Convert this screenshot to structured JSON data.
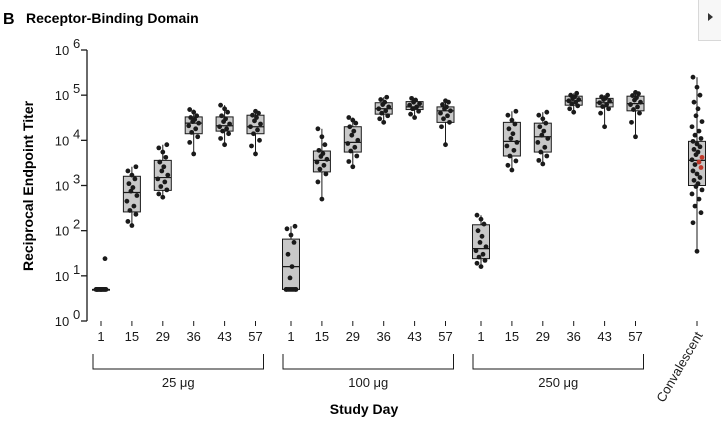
{
  "panel": {
    "letter": "B",
    "title": "Receptor-Binding Domain"
  },
  "colors": {
    "box_fill": "#c8c8c8",
    "point": "#1a1a1a",
    "convalescent_highlight": "#c0392b"
  },
  "chart_data": {
    "type": "box-scatter",
    "title": "Receptor-Binding Domain",
    "xlabel": "Study Day",
    "ylabel": "Reciprocal Endpoint Titer",
    "yscale": "log10",
    "ylim": [
      1,
      1000000
    ],
    "yticks": [
      {
        "value": 1,
        "base": "10",
        "exp": "0"
      },
      {
        "value": 10,
        "base": "10",
        "exp": "1"
      },
      {
        "value": 100,
        "base": "10",
        "exp": "2"
      },
      {
        "value": 1000,
        "base": "10",
        "exp": "3"
      },
      {
        "value": 10000,
        "base": "10",
        "exp": "4"
      },
      {
        "value": 100000,
        "base": "10",
        "exp": "5"
      },
      {
        "value": 1000000,
        "base": "10",
        "exp": "6"
      }
    ],
    "dose_groups": [
      {
        "label": "25 μg",
        "days": [
          {
            "day": "1",
            "q1": 5,
            "median": 5,
            "q3": 5,
            "whisker_low": 5,
            "whisker_high": 5,
            "points": [
              5,
              5,
              5,
              5,
              5,
              5,
              5,
              5,
              5,
              5,
              5,
              5,
              5,
              24
            ]
          },
          {
            "day": "15",
            "q1": 260,
            "median": 700,
            "q3": 1600,
            "whisker_low": 130,
            "whisker_high": 2600,
            "points": [
              130,
              160,
              230,
              280,
              350,
              450,
              600,
              750,
              900,
              1100,
              1400,
              1700,
              2100,
              2600
            ]
          },
          {
            "day": "29",
            "q1": 780,
            "median": 1500,
            "q3": 3600,
            "whisker_low": 550,
            "whisker_high": 8000,
            "points": [
              550,
              650,
              800,
              950,
              1200,
              1400,
              1700,
              2100,
              2600,
              3300,
              4200,
              5500,
              6800,
              8000
            ]
          },
          {
            "day": "36",
            "q1": 14000,
            "median": 24000,
            "q3": 33000,
            "whisker_low": 5000,
            "whisker_high": 48000,
            "points": [
              5000,
              9000,
              12000,
              15000,
              18000,
              21000,
              24000,
              26000,
              29000,
              32000,
              35000,
              42000,
              48000
            ]
          },
          {
            "day": "43",
            "q1": 16000,
            "median": 21000,
            "q3": 33000,
            "whisker_low": 8000,
            "whisker_high": 60000,
            "points": [
              8000,
              11000,
              14000,
              16000,
              18000,
              20000,
              23000,
              26000,
              30000,
              35000,
              42000,
              50000,
              60000
            ]
          },
          {
            "day": "57",
            "q1": 14000,
            "median": 20000,
            "q3": 36000,
            "whisker_low": 5000,
            "whisker_high": 44000,
            "points": [
              5000,
              7500,
              10000,
              14000,
              17000,
              20000,
              23000,
              27000,
              32000,
              36000,
              40000,
              44000
            ]
          }
        ]
      },
      {
        "label": "100 μg",
        "days": [
          {
            "day": "1",
            "q1": 5,
            "median": 16,
            "q3": 65,
            "whisker_low": 5,
            "whisker_high": 125,
            "points": [
              5,
              5,
              5,
              5,
              5,
              5,
              5,
              9,
              16,
              30,
              55,
              80,
              110,
              125
            ]
          },
          {
            "day": "15",
            "q1": 2000,
            "median": 3600,
            "q3": 5800,
            "whisker_low": 500,
            "whisker_high": 18000,
            "points": [
              500,
              1200,
              1800,
              2300,
              2800,
              3300,
              3800,
              4400,
              5100,
              6000,
              8000,
              12000,
              18000
            ]
          },
          {
            "day": "29",
            "q1": 5500,
            "median": 9000,
            "q3": 20000,
            "whisker_low": 2600,
            "whisker_high": 32000,
            "points": [
              2600,
              3400,
              4500,
              5800,
              7000,
              8500,
              10000,
              13000,
              16000,
              20000,
              24000,
              28000,
              32000
            ]
          },
          {
            "day": "36",
            "q1": 38000,
            "median": 50000,
            "q3": 68000,
            "whisker_low": 25000,
            "whisker_high": 90000,
            "points": [
              25000,
              30000,
              35000,
              40000,
              45000,
              50000,
              55000,
              62000,
              70000,
              80000,
              90000
            ]
          },
          {
            "day": "43",
            "q1": 48000,
            "median": 55000,
            "q3": 72000,
            "whisker_low": 32000,
            "whisker_high": 85000,
            "points": [
              32000,
              38000,
              44000,
              50000,
              55000,
              60000,
              65000,
              70000,
              78000,
              85000
            ]
          },
          {
            "day": "57",
            "q1": 25000,
            "median": 45000,
            "q3": 55000,
            "whisker_low": 8000,
            "whisker_high": 75000,
            "points": [
              8000,
              20000,
              25000,
              30000,
              35000,
              40000,
              45000,
              50000,
              55000,
              62000,
              70000,
              75000
            ]
          }
        ]
      },
      {
        "label": "250 μg",
        "days": [
          {
            "day": "1",
            "q1": 24,
            "median": 40,
            "q3": 135,
            "whisker_low": 16,
            "whisker_high": 220,
            "points": [
              16,
              19,
              22,
              26,
              30,
              36,
              44,
              55,
              75,
              100,
              140,
              180,
              220
            ]
          },
          {
            "day": "15",
            "q1": 4500,
            "median": 9500,
            "q3": 25000,
            "whisker_low": 2200,
            "whisker_high": 44000,
            "points": [
              2200,
              2800,
              3500,
              4500,
              6000,
              7500,
              9000,
              11000,
              14000,
              18000,
              23000,
              28000,
              36000,
              44000
            ]
          },
          {
            "day": "29",
            "q1": 5500,
            "median": 12000,
            "q3": 24000,
            "whisker_low": 3000,
            "whisker_high": 42000,
            "points": [
              3000,
              3600,
              4500,
              5500,
              7000,
              9000,
              11000,
              13000,
              16000,
              20000,
              24000,
              30000,
              36000,
              42000
            ]
          },
          {
            "day": "36",
            "q1": 60000,
            "median": 75000,
            "q3": 95000,
            "whisker_low": 42000,
            "whisker_high": 110000,
            "points": [
              42000,
              50000,
              58000,
              64000,
              70000,
              75000,
              80000,
              86000,
              92000,
              100000,
              110000
            ]
          },
          {
            "day": "43",
            "q1": 55000,
            "median": 68000,
            "q3": 85000,
            "whisker_low": 20000,
            "whisker_high": 100000,
            "points": [
              20000,
              40000,
              50000,
              56000,
              62000,
              68000,
              74000,
              80000,
              86000,
              92000,
              100000
            ]
          },
          {
            "day": "57",
            "q1": 45000,
            "median": 65000,
            "q3": 95000,
            "whisker_low": 12000,
            "whisker_high": 115000,
            "points": [
              12000,
              25000,
              40000,
              48000,
              55000,
              62000,
              70000,
              78000,
              88000,
              98000,
              108000,
              115000
            ]
          }
        ]
      }
    ],
    "convalescent": {
      "label": "Convalescent",
      "q1": 1000,
      "median": 3600,
      "q3": 9500,
      "whisker_low": 35,
      "whisker_high": 250000,
      "points": [
        35,
        150,
        250,
        350,
        500,
        650,
        800,
        950,
        1100,
        1300,
        1500,
        1800,
        2100,
        2500,
        2900,
        3300,
        3700,
        4200,
        4800,
        5500,
        6300,
        7200,
        8300,
        9500,
        11000,
        13000,
        16000,
        20000,
        26000,
        35000,
        50000,
        70000,
        100000,
        150000,
        250000
      ],
      "highlight_points": [
        2500,
        3300,
        4200
      ]
    }
  }
}
